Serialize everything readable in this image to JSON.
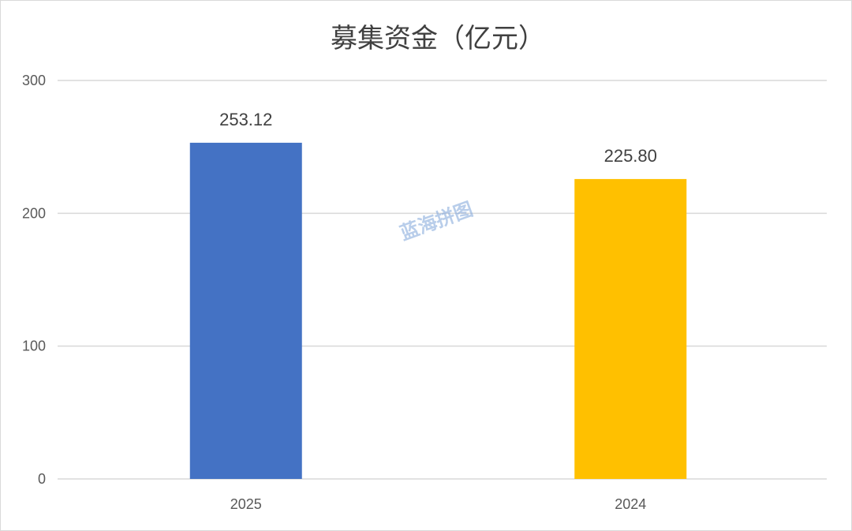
{
  "chart_data": {
    "type": "bar",
    "title": "募集资金（亿元）",
    "categories": [
      "2025",
      "2024"
    ],
    "values": [
      253.12,
      225.8
    ],
    "data_labels": [
      "253.12",
      "225.80"
    ],
    "colors": [
      "#4472c4",
      "#ffc000"
    ],
    "ylim": [
      0,
      300
    ],
    "yticks": [
      0,
      100,
      200,
      300
    ],
    "grid": true,
    "legend": "none",
    "xlabel": "",
    "ylabel": ""
  },
  "watermark": "蓝海拼图"
}
